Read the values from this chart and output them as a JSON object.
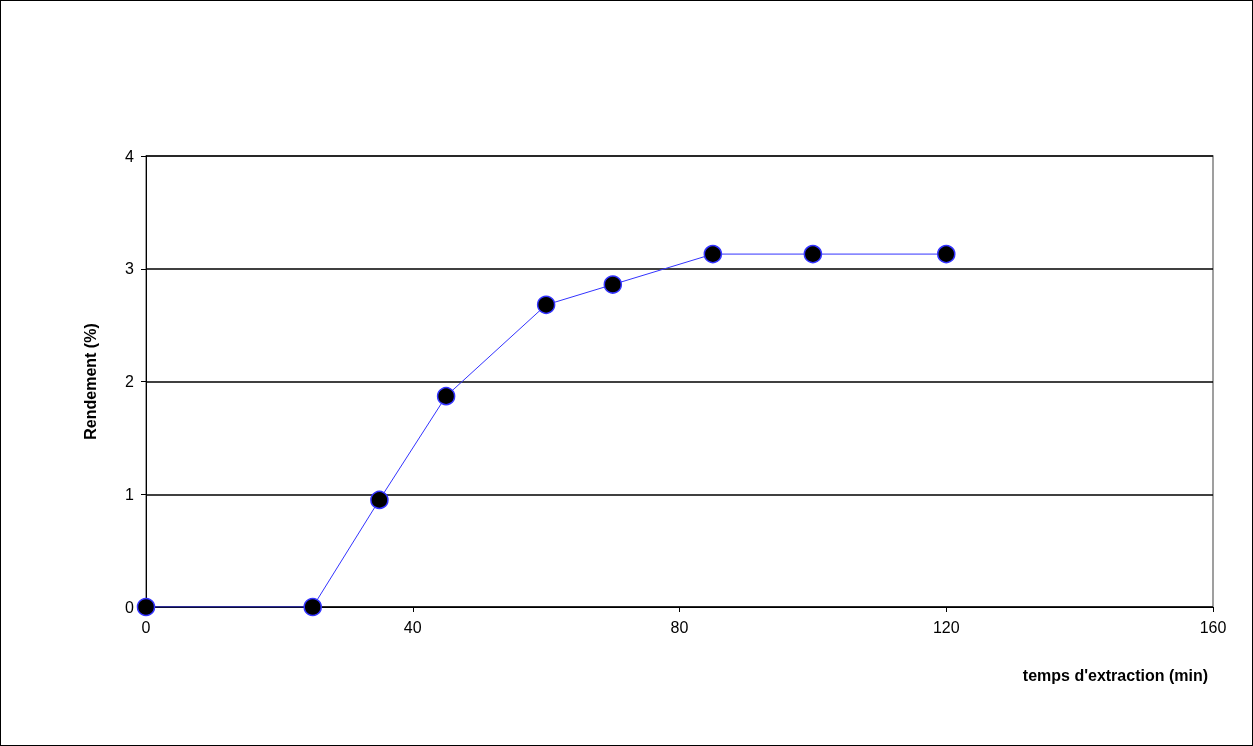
{
  "chart_data": {
    "type": "line",
    "xlabel": "temps d'extraction (min)",
    "ylabel": "Rendement (%)",
    "x": [
      0,
      25,
      35,
      45,
      60,
      70,
      85,
      100,
      120
    ],
    "series": [
      {
        "color": "#3333ff",
        "values": [
          0,
          0,
          0.95,
          1.87,
          2.68,
          2.86,
          3.13,
          3.13,
          3.13
        ]
      }
    ],
    "xlim": [
      0,
      160
    ],
    "xticks": [
      0,
      40,
      80,
      120,
      160
    ],
    "ylim": [
      0,
      4
    ],
    "yticks": [
      0,
      1,
      2,
      3,
      4
    ],
    "grid": "y",
    "marker": "circle",
    "line_style": "solid"
  }
}
